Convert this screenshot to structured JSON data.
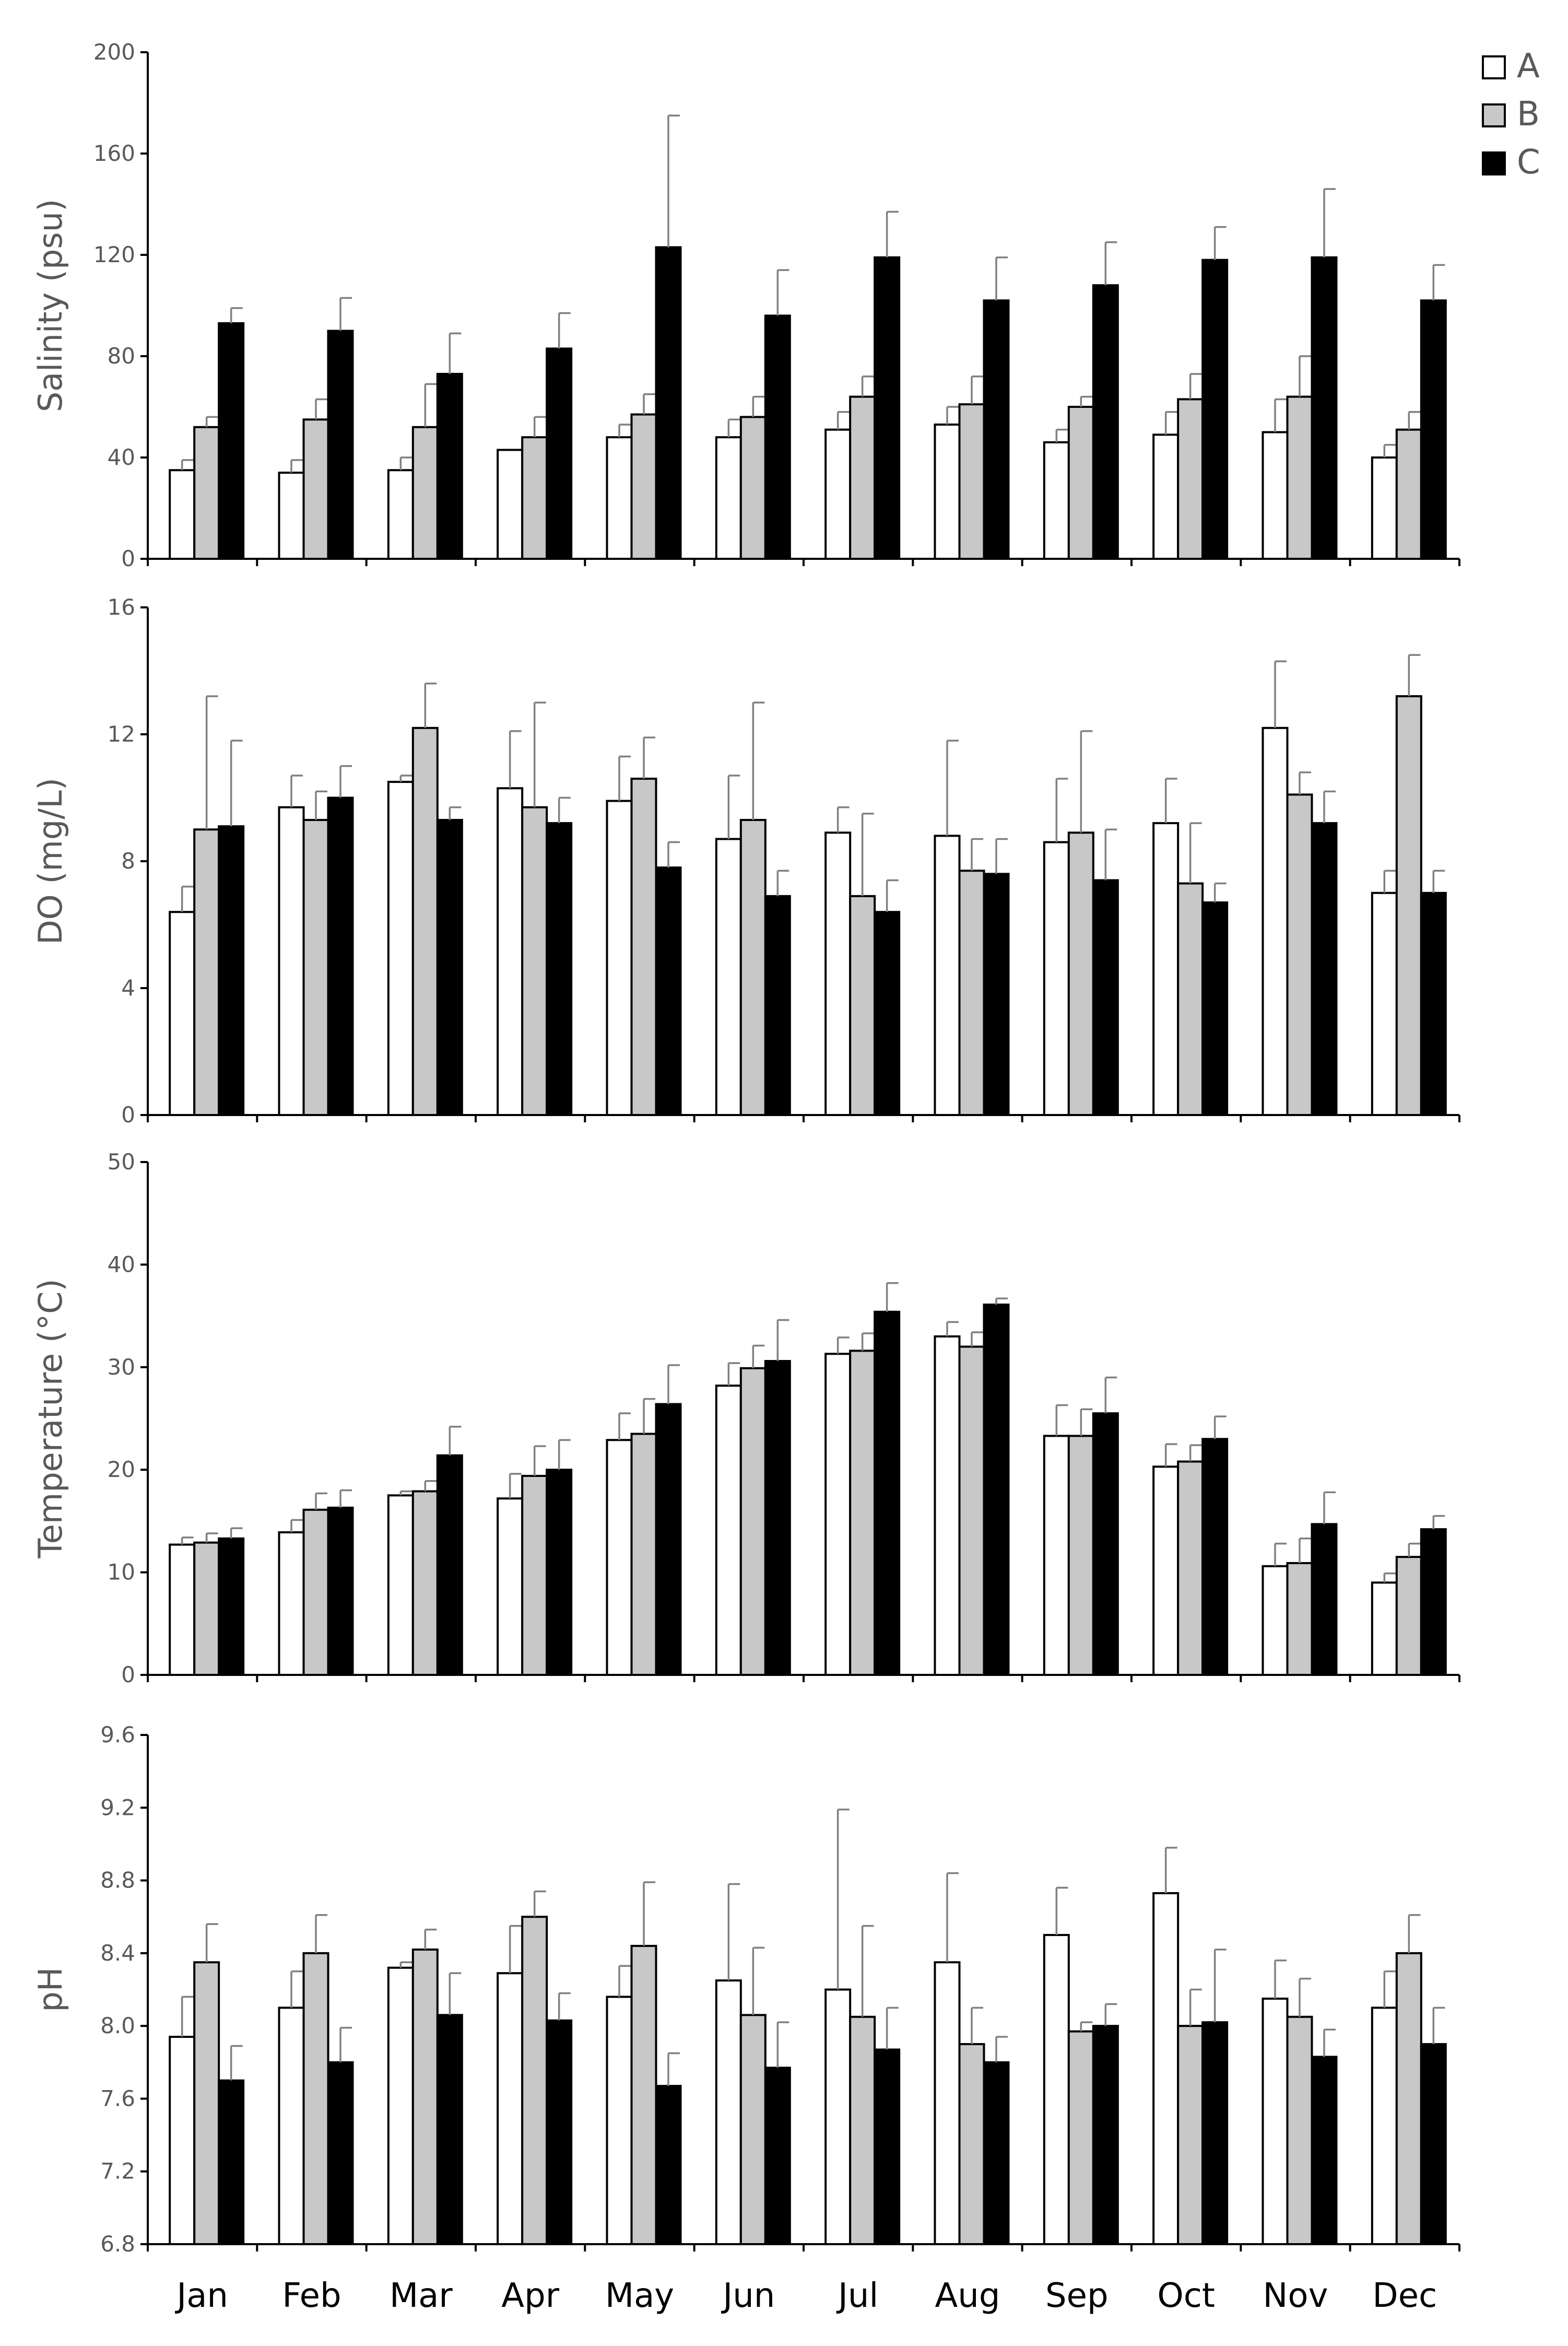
{
  "legend": [
    {
      "name": "A",
      "color": "#ffffff"
    },
    {
      "name": "B",
      "color": "#c8c8c8"
    },
    {
      "name": "C",
      "color": "#000000"
    }
  ],
  "chart_data": [
    {
      "type": "bar",
      "ylabel": "Salinity (psu)",
      "ylim": [
        0,
        200
      ],
      "yticks": [
        "0",
        "40",
        "80",
        "120",
        "160",
        "200"
      ],
      "categories": [
        "Jan",
        "Feb",
        "Mar",
        "Apr",
        "May",
        "Jun",
        "Jul",
        "Aug",
        "Sep",
        "Oct",
        "Nov",
        "Dec"
      ],
      "series": [
        {
          "name": "A",
          "values": [
            35,
            34,
            35,
            43,
            48,
            48,
            51,
            53,
            46,
            49,
            50,
            40
          ],
          "errors": [
            4,
            5,
            5,
            0,
            5,
            7,
            7,
            7,
            5,
            9,
            13,
            5
          ]
        },
        {
          "name": "B",
          "values": [
            52,
            55,
            52,
            48,
            57,
            56,
            64,
            61,
            60,
            63,
            64,
            51
          ],
          "errors": [
            4,
            8,
            17,
            8,
            8,
            8,
            8,
            11,
            4,
            10,
            16,
            7
          ]
        },
        {
          "name": "C",
          "values": [
            93,
            90,
            73,
            83,
            123,
            96,
            119,
            102,
            108,
            118,
            119,
            102
          ],
          "errors": [
            6,
            13,
            16,
            14,
            52,
            18,
            18,
            17,
            17,
            13,
            27,
            14
          ]
        }
      ]
    },
    {
      "type": "bar",
      "ylabel": "DO (mg/L)",
      "ylim": [
        0,
        16
      ],
      "yticks": [
        "0",
        "4",
        "8",
        "12",
        "16"
      ],
      "categories": [
        "Jan",
        "Feb",
        "Mar",
        "Apr",
        "May",
        "Jun",
        "Jul",
        "Aug",
        "Sep",
        "Oct",
        "Nov",
        "Dec"
      ],
      "series": [
        {
          "name": "A",
          "values": [
            6.4,
            9.7,
            10.5,
            10.3,
            9.9,
            8.7,
            8.9,
            8.8,
            8.6,
            9.2,
            12.2,
            7.0
          ],
          "errors": [
            0.8,
            1.0,
            0.2,
            1.8,
            1.4,
            2.0,
            0.8,
            3.0,
            2.0,
            1.4,
            2.1,
            0.7
          ]
        },
        {
          "name": "B",
          "values": [
            9.0,
            9.3,
            12.2,
            9.7,
            10.6,
            9.3,
            6.9,
            7.7,
            8.9,
            7.3,
            10.1,
            13.2
          ],
          "errors": [
            4.2,
            0.9,
            1.4,
            3.3,
            1.3,
            3.7,
            2.6,
            1.0,
            3.2,
            1.9,
            0.7,
            1.3
          ]
        },
        {
          "name": "C",
          "values": [
            9.1,
            10.0,
            9.3,
            9.2,
            7.8,
            6.9,
            6.4,
            7.6,
            7.4,
            6.7,
            9.2,
            7.0
          ],
          "errors": [
            2.7,
            1.0,
            0.4,
            0.8,
            0.8,
            0.8,
            1.0,
            1.1,
            1.6,
            0.6,
            1.0,
            0.7
          ]
        }
      ]
    },
    {
      "type": "bar",
      "ylabel": "Temperature (°C)",
      "ylim": [
        0,
        50
      ],
      "yticks": [
        "0",
        "10",
        "20",
        "30",
        "40",
        "50"
      ],
      "categories": [
        "Jan",
        "Feb",
        "Mar",
        "Apr",
        "May",
        "Jun",
        "Jul",
        "Aug",
        "Sep",
        "Oct",
        "Nov",
        "Dec"
      ],
      "series": [
        {
          "name": "A",
          "values": [
            12.7,
            13.9,
            17.5,
            17.2,
            22.9,
            28.2,
            31.3,
            33.0,
            23.3,
            20.3,
            10.6,
            9.0
          ],
          "errors": [
            0.7,
            1.2,
            0.4,
            2.4,
            2.6,
            2.2,
            1.6,
            1.4,
            3.0,
            2.2,
            2.2,
            0.9
          ]
        },
        {
          "name": "B",
          "values": [
            12.9,
            16.1,
            17.9,
            19.4,
            23.5,
            29.9,
            31.6,
            32.0,
            23.3,
            20.8,
            10.9,
            11.5
          ],
          "errors": [
            0.9,
            1.6,
            1.0,
            2.9,
            3.4,
            2.2,
            1.7,
            1.4,
            2.6,
            1.6,
            2.4,
            1.3
          ]
        },
        {
          "name": "C",
          "values": [
            13.3,
            16.3,
            21.4,
            20.0,
            26.4,
            30.6,
            35.4,
            36.1,
            25.5,
            23.0,
            14.7,
            14.2
          ],
          "errors": [
            1.0,
            1.7,
            2.8,
            2.9,
            3.8,
            4.0,
            2.8,
            0.6,
            3.5,
            2.2,
            3.1,
            1.3
          ]
        }
      ]
    },
    {
      "type": "bar",
      "ylabel": "pH",
      "ylim": [
        6.8,
        9.6
      ],
      "yticks": [
        "6.8",
        "7.2",
        "7.6",
        "8.0",
        "8.4",
        "8.8",
        "9.2",
        "9.6"
      ],
      "categories": [
        "Jan",
        "Feb",
        "Mar",
        "Apr",
        "May",
        "Jun",
        "Jul",
        "Aug",
        "Sep",
        "Oct",
        "Nov",
        "Dec"
      ],
      "series": [
        {
          "name": "A",
          "values": [
            7.94,
            8.1,
            8.32,
            8.29,
            8.16,
            8.25,
            8.2,
            8.35,
            8.5,
            8.73,
            8.15,
            8.1
          ],
          "errors": [
            0.22,
            0.2,
            0.03,
            0.26,
            0.17,
            0.53,
            0.99,
            0.49,
            0.26,
            0.25,
            0.21,
            0.2
          ]
        },
        {
          "name": "B",
          "values": [
            8.35,
            8.4,
            8.42,
            8.6,
            8.44,
            8.06,
            8.05,
            7.9,
            7.97,
            8.0,
            8.05,
            8.4
          ],
          "errors": [
            0.21,
            0.21,
            0.11,
            0.14,
            0.35,
            0.37,
            0.5,
            0.2,
            0.05,
            0.2,
            0.21,
            0.21
          ]
        },
        {
          "name": "C",
          "values": [
            7.7,
            7.8,
            8.06,
            8.03,
            7.67,
            7.77,
            7.87,
            7.8,
            8.0,
            8.02,
            7.83,
            7.9
          ],
          "errors": [
            0.19,
            0.19,
            0.23,
            0.15,
            0.18,
            0.25,
            0.23,
            0.14,
            0.12,
            0.4,
            0.15,
            0.2
          ]
        }
      ]
    }
  ]
}
